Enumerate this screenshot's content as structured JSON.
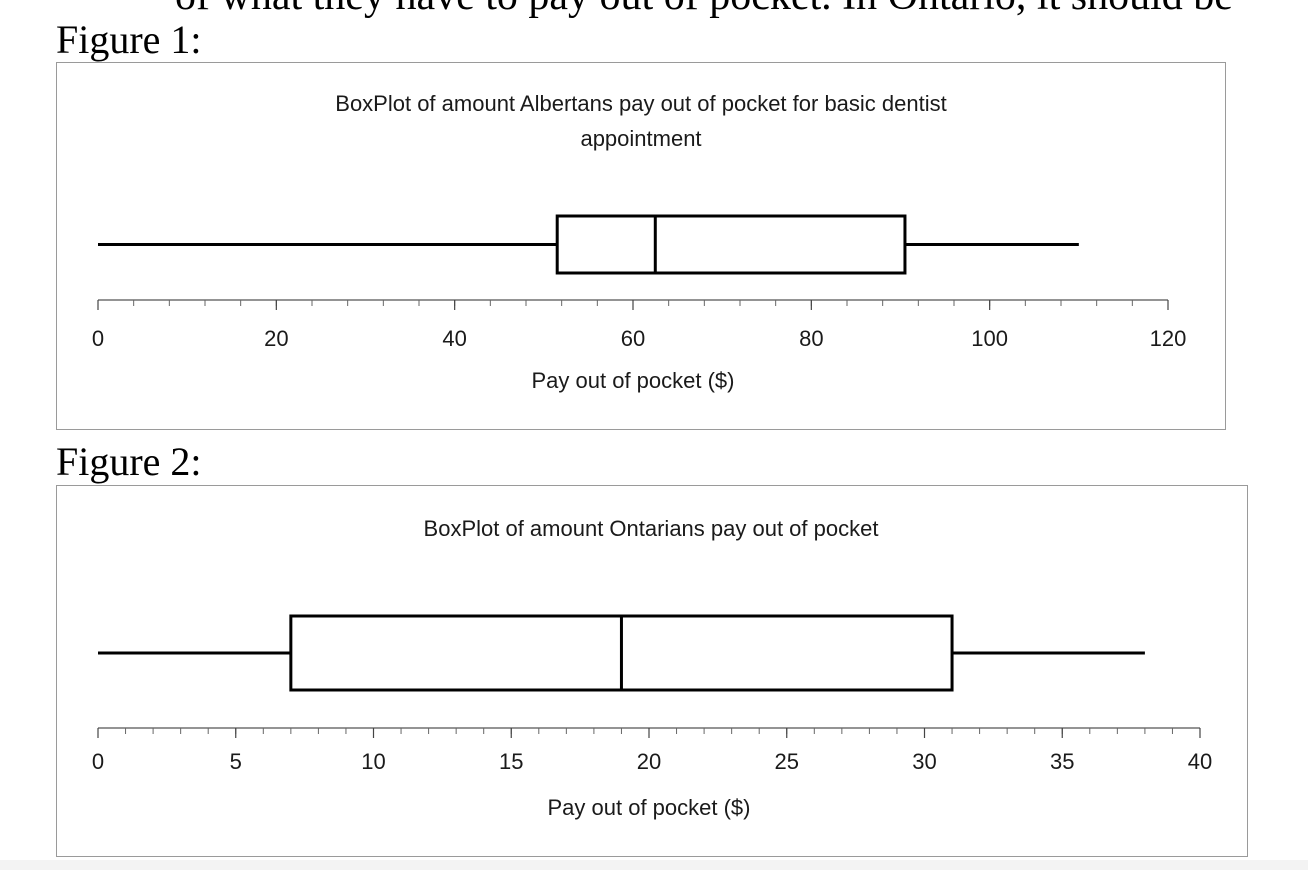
{
  "page": {
    "cut_text": "of what they have to pay out of pocket. In Ontario, it should be",
    "figure1_label": "Figure 1:",
    "figure2_label": "Figure 2:"
  },
  "chart_data": [
    {
      "type": "boxplot",
      "title": "BoxPlot of amount Albertans pay out of pocket for basic dentist appointment",
      "title_lines": [
        "BoxPlot of amount Albertans pay out of pocket for basic dentist",
        "appointment"
      ],
      "xlabel": "Pay out of pocket ($)",
      "xlim": [
        0,
        120
      ],
      "ticks": [
        0,
        20,
        40,
        60,
        80,
        100,
        120
      ],
      "tick_labels": [
        "0",
        "20",
        "40",
        "60",
        "80",
        "100",
        "120"
      ],
      "minor_tick_step": 4,
      "min": 0,
      "q1": 51.5,
      "median": 62.5,
      "q3": 90.5,
      "max": 110
    },
    {
      "type": "boxplot",
      "title": "BoxPlot of amount Ontarians pay out of pocket",
      "title_lines": [
        "BoxPlot of amount Ontarians pay out of pocket"
      ],
      "xlabel": "Pay out of pocket ($)",
      "xlim": [
        0,
        40
      ],
      "ticks": [
        0,
        5,
        10,
        15,
        20,
        25,
        30,
        35,
        40
      ],
      "tick_labels": [
        "0",
        "5",
        "10",
        "15",
        "20",
        "25",
        "30",
        "35",
        "40"
      ],
      "minor_tick_step": 1,
      "min": 0,
      "q1": 7,
      "median": 19,
      "q3": 31,
      "max": 38
    }
  ]
}
